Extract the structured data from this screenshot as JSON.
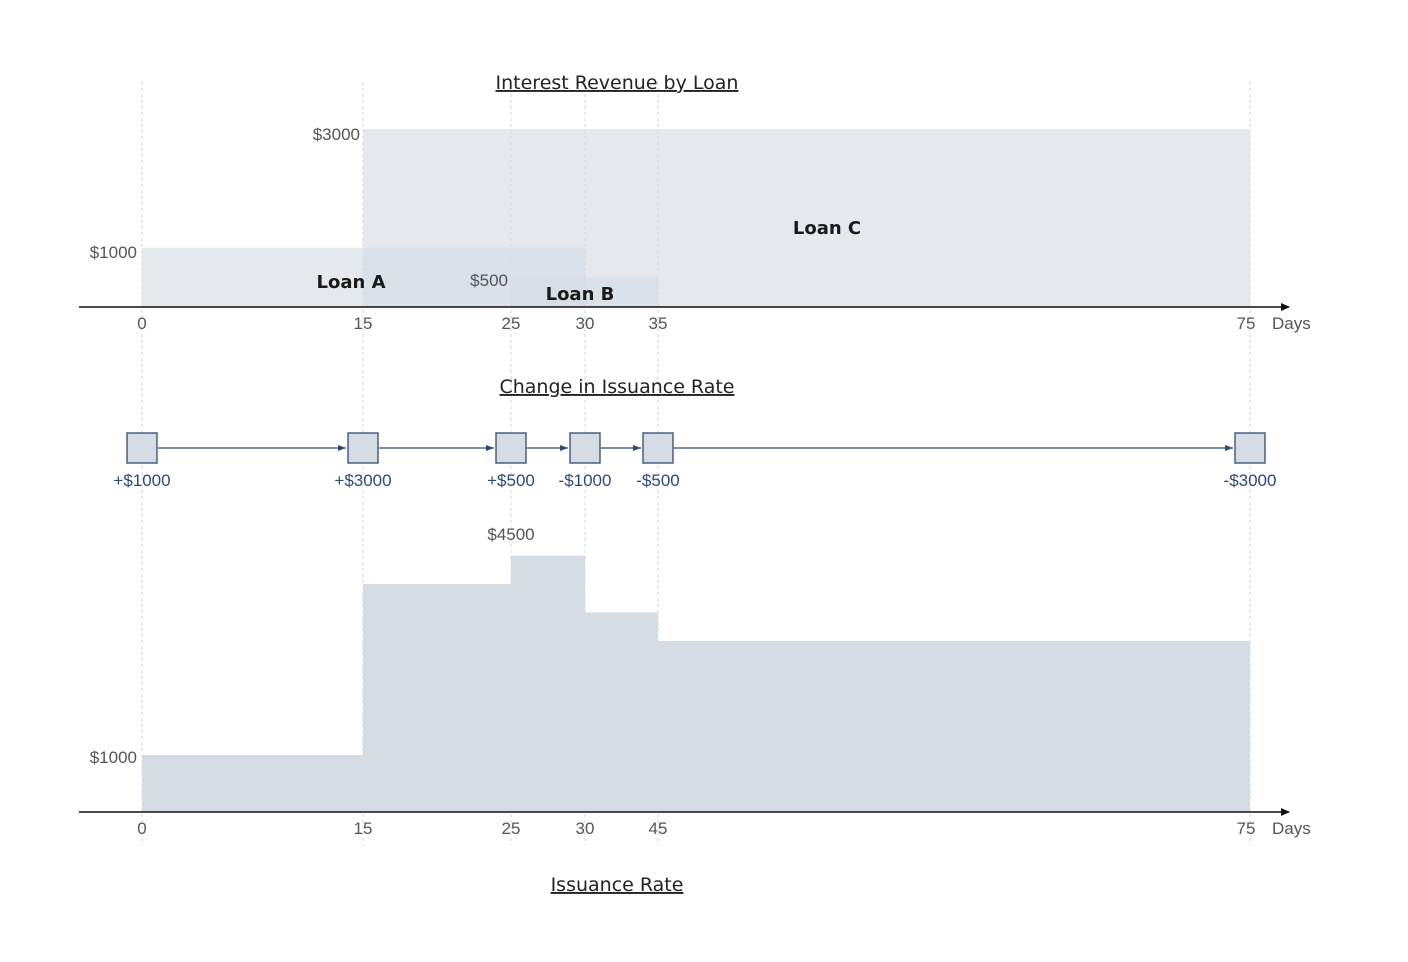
{
  "colors": {
    "fill": "#d5dce4",
    "overlap": "#8c9ab1",
    "axis": "#111111",
    "node_stroke": "#2c4a73",
    "node_fill": "#d5dce4",
    "arrow": "#2c4a73"
  },
  "top_panel": {
    "title": "Interest Revenue by Loan",
    "axis_unit": "Days",
    "ticks": [
      "0",
      "15",
      "25",
      "30",
      "35",
      "75"
    ],
    "loans": [
      {
        "name": "Loan A",
        "start": 0,
        "end": 30,
        "amount": 1000,
        "amount_label": "$1000"
      },
      {
        "name": "Loan B",
        "start": 25,
        "end": 35,
        "amount": 500,
        "amount_label": "$500"
      },
      {
        "name": "Loan C",
        "start": 15,
        "end": 75,
        "amount": 3000,
        "amount_label": "$3000"
      }
    ]
  },
  "middle_panel": {
    "title": "Change in Issuance Rate",
    "changes": [
      {
        "day": 0,
        "label": "+$1000"
      },
      {
        "day": 15,
        "label": "+$3000"
      },
      {
        "day": 25,
        "label": "+$500"
      },
      {
        "day": 30,
        "label": "-$1000"
      },
      {
        "day": 35,
        "label": "-$500"
      },
      {
        "day": 75,
        "label": "-$3000"
      }
    ]
  },
  "bottom_panel": {
    "title": "Issuance Rate",
    "axis_unit": "Days",
    "ticks": [
      "0",
      "15",
      "25",
      "30",
      "45",
      "75"
    ],
    "steps": [
      {
        "start": 0,
        "end": 15,
        "value": 1000
      },
      {
        "start": 15,
        "end": 25,
        "value": 4000
      },
      {
        "start": 25,
        "end": 30,
        "value": 4500
      },
      {
        "start": 30,
        "end": 35,
        "value": 3500
      },
      {
        "start": 35,
        "end": 75,
        "value": 3000
      }
    ],
    "value_labels": [
      {
        "label": "$1000",
        "value": 1000
      },
      {
        "label": "$4500",
        "value": 4500
      }
    ]
  }
}
